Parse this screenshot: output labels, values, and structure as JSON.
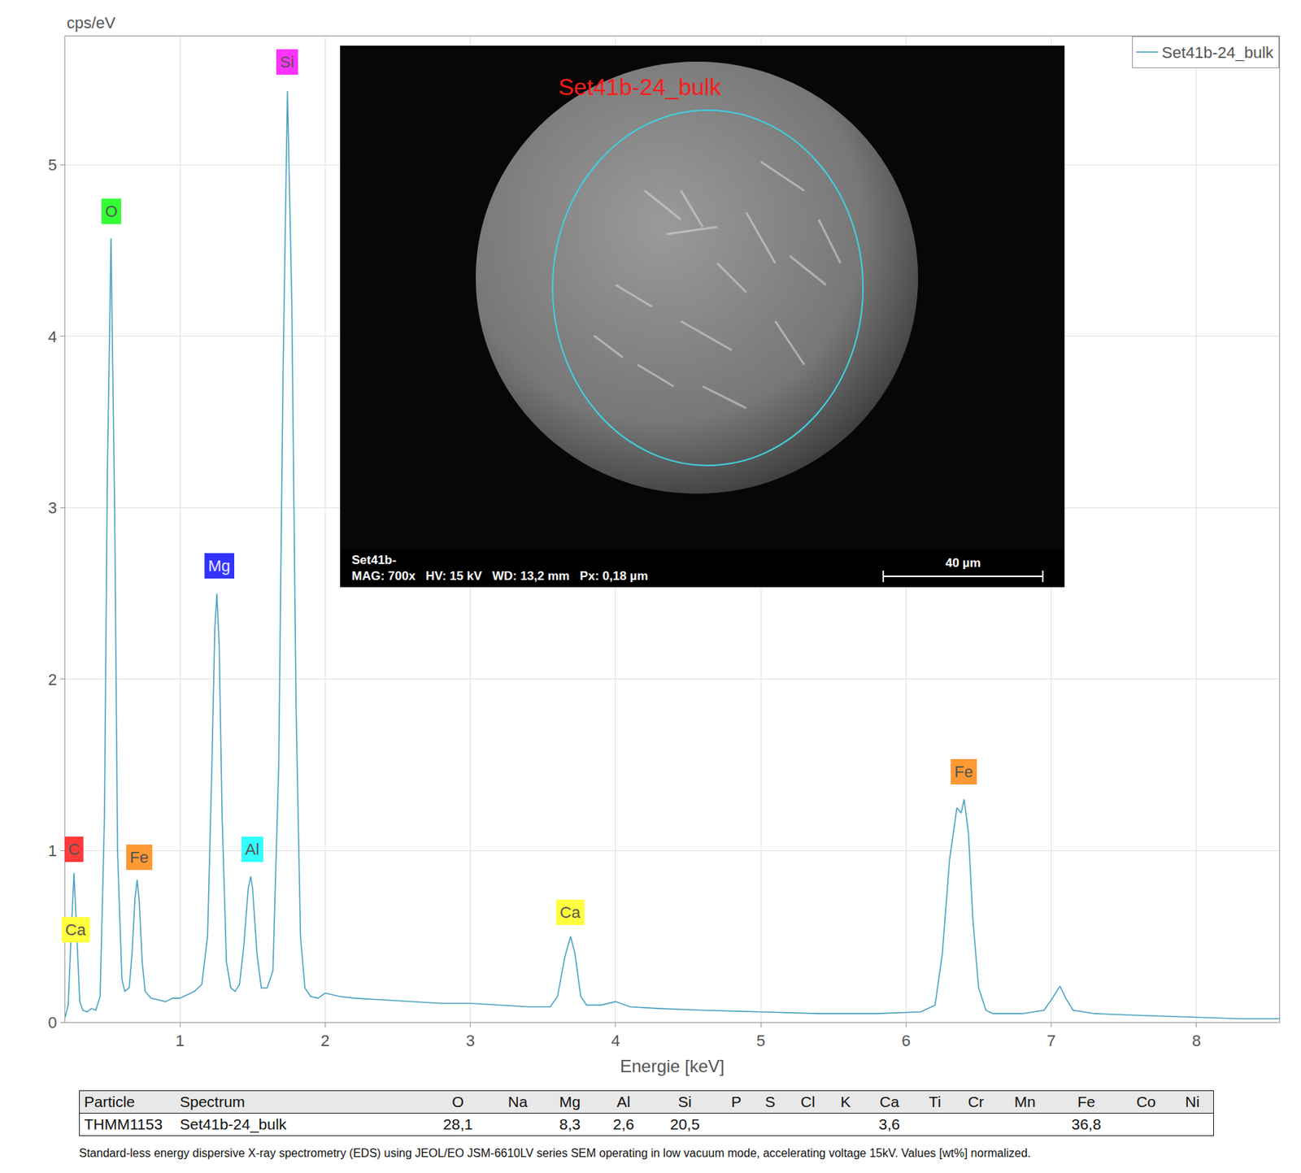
{
  "chart_data": {
    "type": "line",
    "x_label": "Energie [keV]",
    "y_label": "cps/eV",
    "xlim": [
      0.21,
      8.57
    ],
    "xticks": [
      1,
      2,
      3,
      4,
      5,
      6,
      7,
      8
    ],
    "ylim": [
      0,
      5.75
    ],
    "yticks": [
      0,
      1,
      2,
      3,
      4,
      5
    ],
    "grid": true,
    "legend": "upper right",
    "series": [
      {
        "name": "Set41b-24_bulk",
        "color": "#4ba3c3",
        "x": [
          0.21,
          0.23,
          0.25,
          0.27,
          0.29,
          0.31,
          0.33,
          0.36,
          0.39,
          0.42,
          0.45,
          0.48,
          0.5,
          0.525,
          0.55,
          0.57,
          0.6,
          0.62,
          0.65,
          0.67,
          0.69,
          0.705,
          0.72,
          0.74,
          0.76,
          0.8,
          0.85,
          0.9,
          0.95,
          1.0,
          1.05,
          1.1,
          1.15,
          1.19,
          1.22,
          1.24,
          1.254,
          1.27,
          1.29,
          1.32,
          1.35,
          1.38,
          1.41,
          1.44,
          1.47,
          1.487,
          1.5,
          1.53,
          1.56,
          1.6,
          1.64,
          1.68,
          1.71,
          1.74,
          1.77,
          1.8,
          1.83,
          1.86,
          1.9,
          1.95,
          2.0,
          2.1,
          2.2,
          2.4,
          2.6,
          2.8,
          3.0,
          3.2,
          3.4,
          3.55,
          3.6,
          3.65,
          3.69,
          3.72,
          3.76,
          3.8,
          3.9,
          4.0,
          4.1,
          4.3,
          4.6,
          5.0,
          5.4,
          5.8,
          6.1,
          6.2,
          6.25,
          6.3,
          6.35,
          6.38,
          6.4,
          6.43,
          6.46,
          6.5,
          6.55,
          6.6,
          6.8,
          6.95,
          7.0,
          7.06,
          7.1,
          7.15,
          7.3,
          7.6,
          8.0,
          8.3,
          8.57
        ],
        "values": [
          0.03,
          0.1,
          0.5,
          0.87,
          0.5,
          0.12,
          0.07,
          0.06,
          0.08,
          0.07,
          0.15,
          1.2,
          3.2,
          4.57,
          3.0,
          1.0,
          0.25,
          0.18,
          0.2,
          0.4,
          0.72,
          0.83,
          0.7,
          0.35,
          0.18,
          0.14,
          0.13,
          0.12,
          0.14,
          0.14,
          0.16,
          0.18,
          0.22,
          0.5,
          1.5,
          2.3,
          2.5,
          2.2,
          1.2,
          0.35,
          0.2,
          0.18,
          0.22,
          0.45,
          0.78,
          0.85,
          0.78,
          0.4,
          0.2,
          0.2,
          0.3,
          1.5,
          3.8,
          5.43,
          4.2,
          1.8,
          0.5,
          0.2,
          0.15,
          0.14,
          0.17,
          0.15,
          0.14,
          0.13,
          0.12,
          0.11,
          0.11,
          0.1,
          0.09,
          0.09,
          0.15,
          0.38,
          0.5,
          0.4,
          0.15,
          0.1,
          0.1,
          0.12,
          0.09,
          0.08,
          0.07,
          0.06,
          0.05,
          0.05,
          0.06,
          0.1,
          0.4,
          0.95,
          1.25,
          1.22,
          1.3,
          1.1,
          0.6,
          0.2,
          0.07,
          0.05,
          0.05,
          0.07,
          0.13,
          0.21,
          0.14,
          0.07,
          0.05,
          0.04,
          0.03,
          0.02,
          0.02
        ]
      }
    ],
    "peak_labels": [
      {
        "text": "C",
        "x": 0.27,
        "y": 1.01,
        "color": "#ff3b3b"
      },
      {
        "text": "Ca",
        "x": 0.28,
        "y": 0.54,
        "color": "#ffff40"
      },
      {
        "text": "O",
        "x": 0.525,
        "y": 4.73,
        "color": "#33ff33"
      },
      {
        "text": "Fe",
        "x": 0.72,
        "y": 0.96,
        "color": "#ff9933"
      },
      {
        "text": "Mg",
        "x": 1.27,
        "y": 2.66,
        "color": "#3333ff"
      },
      {
        "text": "Al",
        "x": 1.5,
        "y": 1.01,
        "color": "#33ffff"
      },
      {
        "text": "Si",
        "x": 1.74,
        "y": 5.6,
        "color": "#ff33ff"
      },
      {
        "text": "Ca",
        "x": 3.69,
        "y": 0.64,
        "color": "#ffff40"
      },
      {
        "text": "Fe",
        "x": 6.4,
        "y": 1.46,
        "color": "#ff9933"
      }
    ]
  },
  "inset": {
    "title": "Set41b-24_bulk",
    "footer": [
      "Set41b-",
      "MAG: 700x   HV: 15 kV   WD: 13,2 mm   Px: 0,18 µm"
    ],
    "scale_bar": "40 µm"
  },
  "table": {
    "header": [
      "Particle",
      "Spectrum",
      "O",
      "Na",
      "Mg",
      "Al",
      "Si",
      "P",
      "S",
      "Cl",
      "K",
      "Ca",
      "Ti",
      "Cr",
      "Mn",
      "Fe",
      "Co",
      "Ni"
    ],
    "rows": [
      [
        "THMM1153",
        "Set41b-24_bulk",
        "28,1",
        null,
        "8,3",
        "2,6",
        "20,5",
        null,
        null,
        null,
        null,
        "3,6",
        null,
        null,
        null,
        "36,8",
        null,
        null
      ]
    ]
  },
  "caption": "Standard-less energy dispersive X-ray spectrometry (EDS) using JEOL/EO JSM-6610LV series SEM operating in low vacuum mode, accelerating voltage 15kV. Values [wt%] normalized."
}
